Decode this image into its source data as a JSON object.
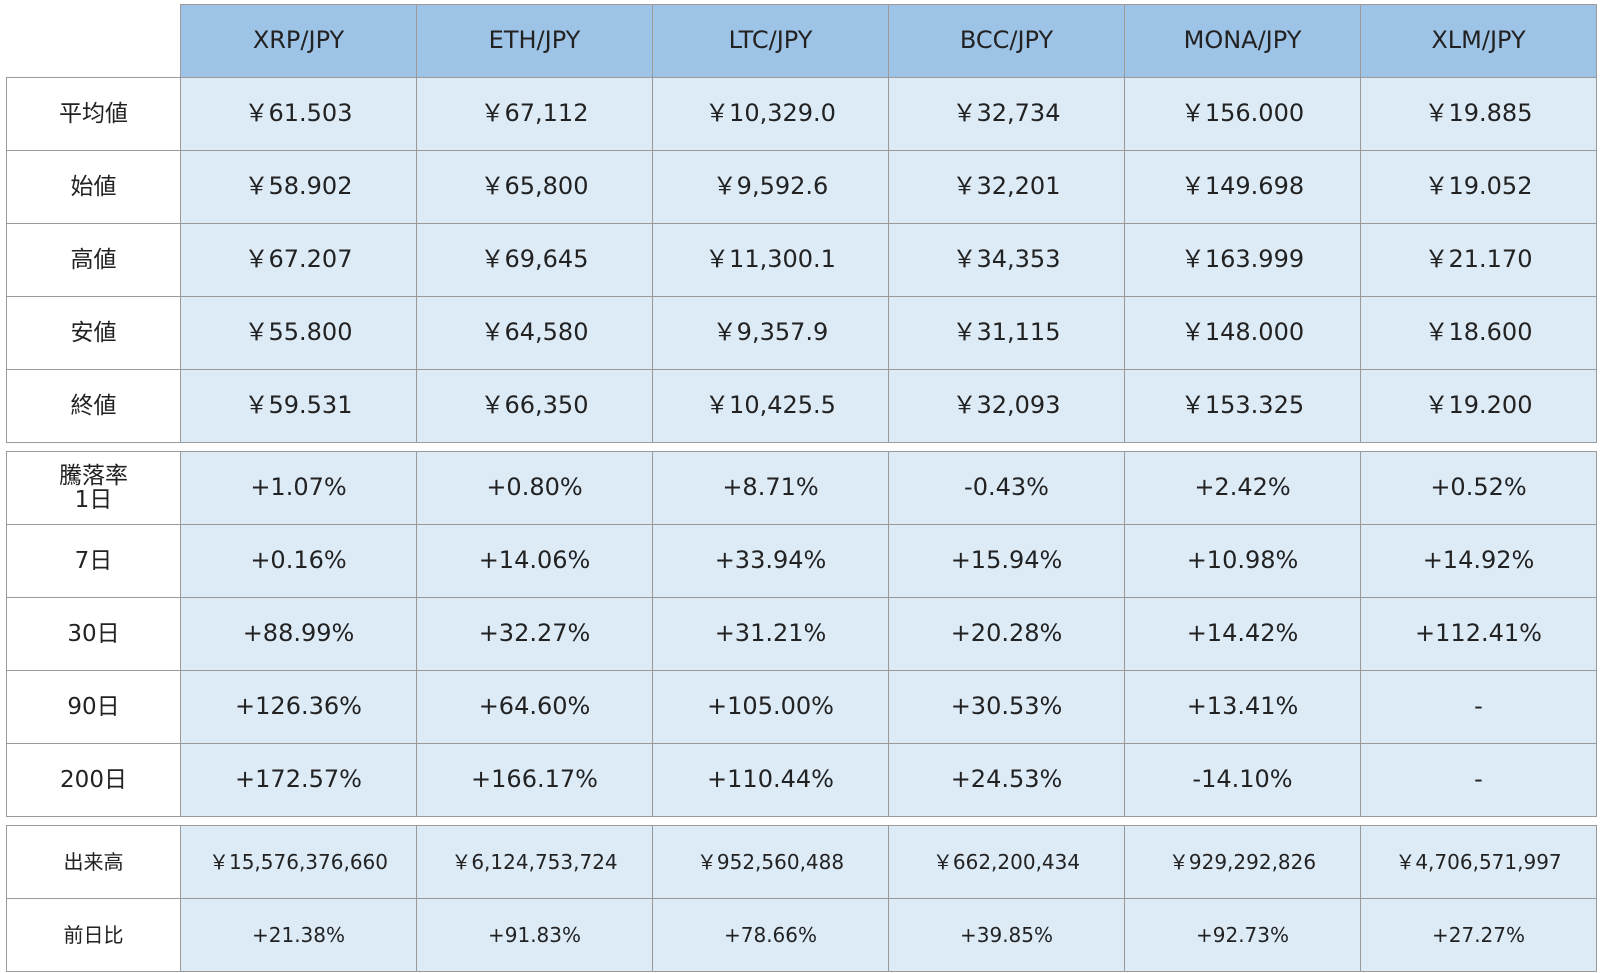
{
  "header": {
    "columns": [
      "XRP/JPY",
      "ETH/JPY",
      "LTC/JPY",
      "BCC/JPY",
      "MONA/JPY",
      "XLM/JPY"
    ]
  },
  "prices": {
    "rows": [
      {
        "label": "平均値",
        "cells": [
          "￥61.503",
          "￥67,112",
          "￥10,329.0",
          "￥32,734",
          "￥156.000",
          "￥19.885"
        ]
      },
      {
        "label": "始値",
        "cells": [
          "￥58.902",
          "￥65,800",
          "￥9,592.6",
          "￥32,201",
          "￥149.698",
          "￥19.052"
        ]
      },
      {
        "label": "高値",
        "cells": [
          "￥67.207",
          "￥69,645",
          "￥11,300.1",
          "￥34,353",
          "￥163.999",
          "￥21.170"
        ]
      },
      {
        "label": "安値",
        "cells": [
          "￥55.800",
          "￥64,580",
          "￥9,357.9",
          "￥31,115",
          "￥148.000",
          "￥18.600"
        ]
      },
      {
        "label": "終値",
        "cells": [
          "￥59.531",
          "￥66,350",
          "￥10,425.5",
          "￥32,093",
          "￥153.325",
          "￥19.200"
        ]
      }
    ]
  },
  "changes": {
    "title": "騰落率",
    "rows": [
      {
        "label": "1日",
        "cells": [
          "+1.07%",
          "+0.80%",
          "+8.71%",
          "-0.43%",
          "+2.42%",
          "+0.52%"
        ]
      },
      {
        "label": "7日",
        "cells": [
          "+0.16%",
          "+14.06%",
          "+33.94%",
          "+15.94%",
          "+10.98%",
          "+14.92%"
        ]
      },
      {
        "label": "30日",
        "cells": [
          "+88.99%",
          "+32.27%",
          "+31.21%",
          "+20.28%",
          "+14.42%",
          "+112.41%"
        ]
      },
      {
        "label": "90日",
        "cells": [
          "+126.36%",
          "+64.60%",
          "+105.00%",
          "+30.53%",
          "+13.41%",
          "-"
        ]
      },
      {
        "label": "200日",
        "cells": [
          "+172.57%",
          "+166.17%",
          "+110.44%",
          "+24.53%",
          "-14.10%",
          "-"
        ]
      }
    ]
  },
  "volume": {
    "rows": [
      {
        "label": "出来高",
        "cells": [
          "￥15,576,376,660",
          "￥6,124,753,724",
          "￥952,560,488",
          "￥662,200,434",
          "￥929,292,826",
          "￥4,706,571,997"
        ]
      },
      {
        "label": "前日比",
        "cells": [
          "+21.38%",
          "+91.83%",
          "+78.66%",
          "+39.85%",
          "+92.73%",
          "+27.27%"
        ]
      }
    ]
  }
}
